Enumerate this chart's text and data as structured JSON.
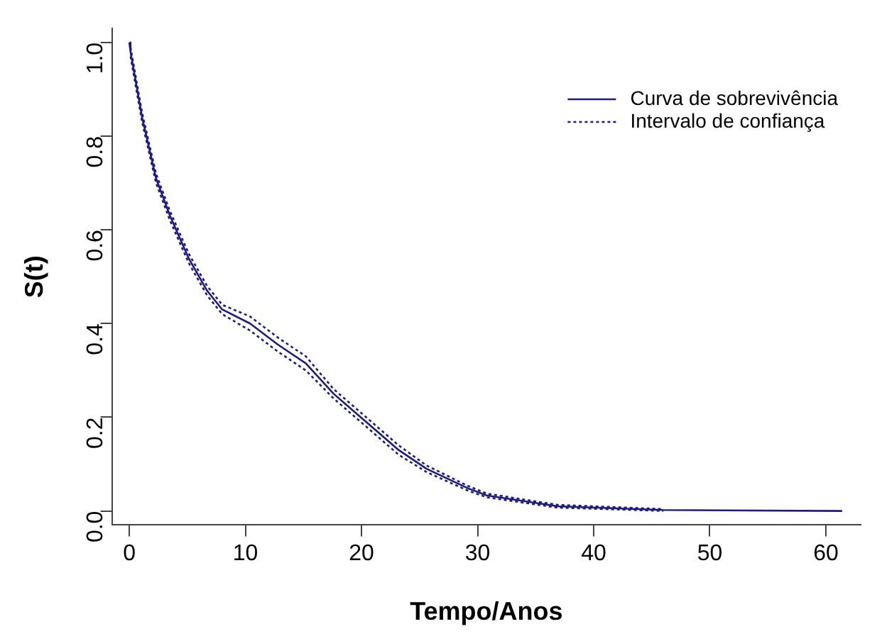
{
  "chart_data": {
    "type": "line",
    "xlabel": "Tempo/Anos",
    "ylabel": "S(t)",
    "x": [
      0,
      0.1,
      1.1,
      2.3,
      3.5,
      5.1,
      6.7,
      8,
      10.4,
      12.8,
      15.2,
      17.6,
      20.4,
      23.2,
      25.6,
      29.2,
      30.8,
      36.9,
      46,
      61.4
    ],
    "series": [
      {
        "name": "Curva de sobrevivência",
        "color": "#1c1c80",
        "line_style": "solid",
        "values": [
          1,
          0.98,
          0.84,
          0.71,
          0.63,
          0.54,
          0.47,
          0.43,
          0.4,
          0.355,
          0.315,
          0.25,
          0.19,
          0.13,
          0.09,
          0.048,
          0.033,
          0.01,
          0.002,
          0
        ]
      },
      {
        "name": "Intervalo de confiança",
        "color": "#1c1c80",
        "line_style": "dotted",
        "values": [
          null,
          0.99,
          0.85,
          0.72,
          0.64,
          0.55,
          0.48,
          0.44,
          0.415,
          0.37,
          0.33,
          0.26,
          0.2,
          0.14,
          0.097,
          0.053,
          0.037,
          0.013,
          0.004,
          null
        ]
      },
      {
        "color": "#1c1c80",
        "line_style": "dotted",
        "values": [
          null,
          0.97,
          0.83,
          0.7,
          0.62,
          0.53,
          0.46,
          0.42,
          0.385,
          0.34,
          0.3,
          0.24,
          0.18,
          0.12,
          0.083,
          0.043,
          0.029,
          0.007,
          0,
          null
        ]
      }
    ],
    "xlim": [
      -1.5,
      63
    ],
    "xticks": [
      0,
      10,
      20,
      30,
      40,
      50,
      60
    ],
    "ylim": [
      -0.03,
      1.03
    ],
    "yticks": [
      {
        "value": 0,
        "label": "0.0"
      },
      {
        "value": 0.2,
        "label": "0.2"
      },
      {
        "value": 0.4,
        "label": "0.4"
      },
      {
        "value": 0.6,
        "label": "0.6"
      },
      {
        "value": 0.8,
        "label": "0.8"
      },
      {
        "value": 1,
        "label": "1.0"
      }
    ],
    "grid": false,
    "legend": "top right",
    "marker": "none"
  }
}
